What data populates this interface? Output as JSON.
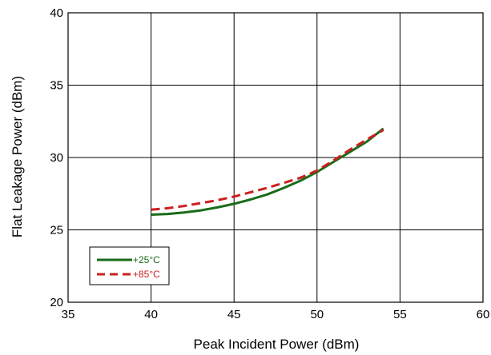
{
  "chart_data": {
    "type": "line",
    "title": "",
    "xlabel": "Peak Incident Power (dBm)",
    "ylabel": "Flat Leakage Power (dBm)",
    "xlim": [
      35,
      60
    ],
    "ylim": [
      20,
      40
    ],
    "x_ticks": [
      "35",
      "40",
      "45",
      "50",
      "55",
      "60"
    ],
    "y_ticks": [
      "20",
      "25",
      "30",
      "35",
      "40"
    ],
    "grid": true,
    "legend_position": "bottom-left",
    "series": [
      {
        "name": "+25°C",
        "color": "#1a6b1a",
        "style": "solid",
        "x": [
          40,
          41,
          42,
          43,
          44,
          45,
          46,
          47,
          48,
          49,
          50,
          51,
          52,
          53,
          54
        ],
        "y": [
          26.05,
          26.1,
          26.2,
          26.35,
          26.55,
          26.8,
          27.1,
          27.45,
          27.9,
          28.4,
          29.0,
          29.7,
          30.4,
          31.1,
          32.0
        ]
      },
      {
        "name": "+85°C",
        "color": "#cc1f1f",
        "style": "dashed",
        "x": [
          40,
          41,
          42,
          43,
          44,
          45,
          46,
          47,
          48,
          49,
          50,
          51,
          52,
          53,
          54
        ],
        "y": [
          26.4,
          26.5,
          26.65,
          26.85,
          27.05,
          27.3,
          27.6,
          27.9,
          28.25,
          28.6,
          29.1,
          29.8,
          30.55,
          31.25,
          31.9
        ]
      }
    ]
  }
}
